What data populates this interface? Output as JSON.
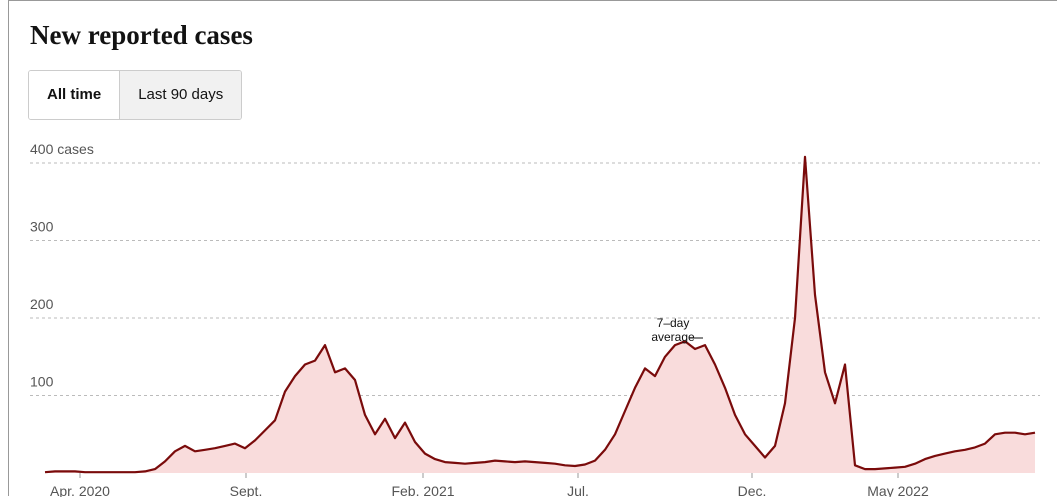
{
  "controls": {
    "buttons": [
      "All time",
      "Last 90 days"
    ],
    "selected": 0
  },
  "chart_data": {
    "type": "area",
    "title": "New reported cases",
    "values": [
      1,
      2,
      2,
      2,
      1,
      1,
      1,
      1,
      1,
      1,
      2,
      5,
      15,
      28,
      35,
      28,
      30,
      32,
      35,
      38,
      32,
      42,
      55,
      68,
      105,
      125,
      140,
      145,
      165,
      130,
      135,
      120,
      75,
      50,
      70,
      45,
      65,
      40,
      25,
      18,
      14,
      13,
      12,
      13,
      14,
      16,
      15,
      14,
      15,
      14,
      13,
      12,
      10,
      9,
      11,
      16,
      30,
      50,
      80,
      110,
      135,
      125,
      150,
      165,
      170,
      160,
      165,
      140,
      110,
      75,
      50,
      35,
      20,
      35,
      90,
      200,
      408,
      230,
      130,
      90,
      140,
      10,
      5,
      5,
      6,
      7,
      8,
      12,
      18,
      22,
      25,
      28,
      30,
      33,
      38,
      50,
      52,
      52,
      50,
      52
    ],
    "color": "#7a0b0b",
    "fill": "#f9dcdc",
    "xlim": [
      0,
      99
    ],
    "xticks": [
      {
        "value": 3.5,
        "label": "Apr. 2020"
      },
      {
        "value": 20.1,
        "label": "Sept."
      },
      {
        "value": 37.8,
        "label": "Feb. 2021"
      },
      {
        "value": 53.3,
        "label": "Jul."
      },
      {
        "value": 70.7,
        "label": "Dec."
      },
      {
        "value": 85.3,
        "label": "May 2022"
      }
    ],
    "ylim": [
      0,
      420
    ],
    "yticks": [
      100,
      200,
      300,
      {
        "value": 400,
        "label": "400 cases"
      }
    ],
    "grid": true,
    "annotation": {
      "lines": [
        "7–day",
        "average"
      ],
      "at": 65
    }
  }
}
